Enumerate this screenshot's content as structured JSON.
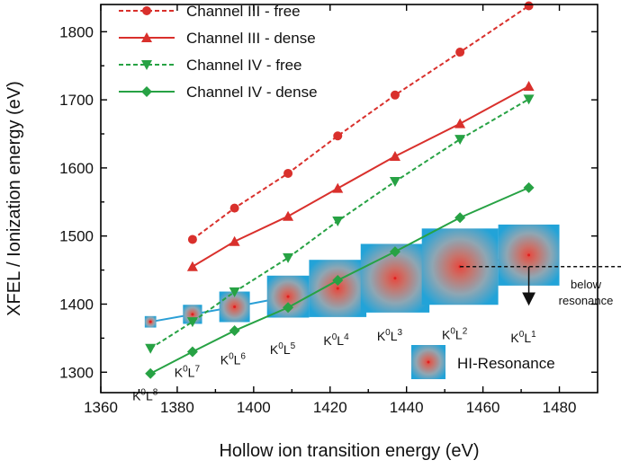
{
  "chart_data": {
    "type": "line",
    "xlabel": "Hollow ion transition energy (eV)",
    "ylabel": "XFEL / Ionization energy (eV)",
    "xlim": [
      1360,
      1490
    ],
    "ylim": [
      1270,
      1840
    ],
    "xticks": [
      1360,
      1380,
      1400,
      1420,
      1440,
      1460,
      1480
    ],
    "yticks": [
      1300,
      1400,
      1500,
      1600,
      1700,
      1800
    ],
    "grid": false,
    "legend_position": "top-left",
    "series": [
      {
        "name": "Channel III - free",
        "color": "#d9302c",
        "line": "dashed",
        "marker": "circle",
        "points": [
          [
            1384,
            1495
          ],
          [
            1395,
            1541
          ],
          [
            1409,
            1592
          ],
          [
            1422,
            1647
          ],
          [
            1437,
            1707
          ],
          [
            1454,
            1770
          ],
          [
            1472,
            1838
          ]
        ]
      },
      {
        "name": "Channel III - dense",
        "color": "#d9302c",
        "line": "solid",
        "marker": "triangle-up",
        "points": [
          [
            1384,
            1455
          ],
          [
            1395,
            1492
          ],
          [
            1409,
            1529
          ],
          [
            1422,
            1570
          ],
          [
            1437,
            1617
          ],
          [
            1454,
            1665
          ],
          [
            1472,
            1720
          ]
        ]
      },
      {
        "name": "Channel IV - free",
        "color": "#27a244",
        "line": "dashed",
        "marker": "triangle-down",
        "points": [
          [
            1373,
            1335
          ],
          [
            1384,
            1374
          ],
          [
            1395,
            1418
          ],
          [
            1409,
            1468
          ],
          [
            1422,
            1522
          ],
          [
            1437,
            1580
          ],
          [
            1454,
            1642
          ],
          [
            1472,
            1701
          ]
        ]
      },
      {
        "name": "Channel IV - dense",
        "color": "#27a244",
        "line": "solid",
        "marker": "diamond",
        "points": [
          [
            1373,
            1298
          ],
          [
            1384,
            1330
          ],
          [
            1395,
            1361
          ],
          [
            1409,
            1395
          ],
          [
            1422,
            1435
          ],
          [
            1437,
            1477
          ],
          [
            1454,
            1527
          ],
          [
            1472,
            1571
          ]
        ]
      }
    ],
    "resonances": {
      "name": "HI-Resonance",
      "line_color": "#2a9fd6",
      "points": [
        {
          "x": 1373,
          "y": 1374,
          "w": 3,
          "label_base": "K",
          "sup1": "0",
          "mid": "L",
          "sup2": "8"
        },
        {
          "x": 1384,
          "y": 1385,
          "w": 5,
          "label_base": "K",
          "sup1": "0",
          "mid": "L",
          "sup2": "7"
        },
        {
          "x": 1395,
          "y": 1396,
          "w": 8,
          "label_base": "K",
          "sup1": "0",
          "mid": "L",
          "sup2": "6"
        },
        {
          "x": 1409,
          "y": 1411,
          "w": 11,
          "label_base": "K",
          "sup1": "0",
          "mid": "L",
          "sup2": "5"
        },
        {
          "x": 1422,
          "y": 1423,
          "w": 15,
          "label_base": "K",
          "sup1": "0",
          "mid": "L",
          "sup2": "4"
        },
        {
          "x": 1437,
          "y": 1438,
          "w": 18,
          "label_base": "K",
          "sup1": "0",
          "mid": "L",
          "sup2": "3"
        },
        {
          "x": 1454,
          "y": 1455,
          "w": 20,
          "label_base": "K",
          "sup1": "0",
          "mid": "L",
          "sup2": "2"
        },
        {
          "x": 1472,
          "y": 1472,
          "w": 16,
          "label_base": "K",
          "sup1": "0",
          "mid": "L",
          "sup2": "1"
        }
      ]
    },
    "annotation": {
      "text_line1": "below",
      "text_line2": "resonance",
      "threshold_y": 1455
    }
  }
}
